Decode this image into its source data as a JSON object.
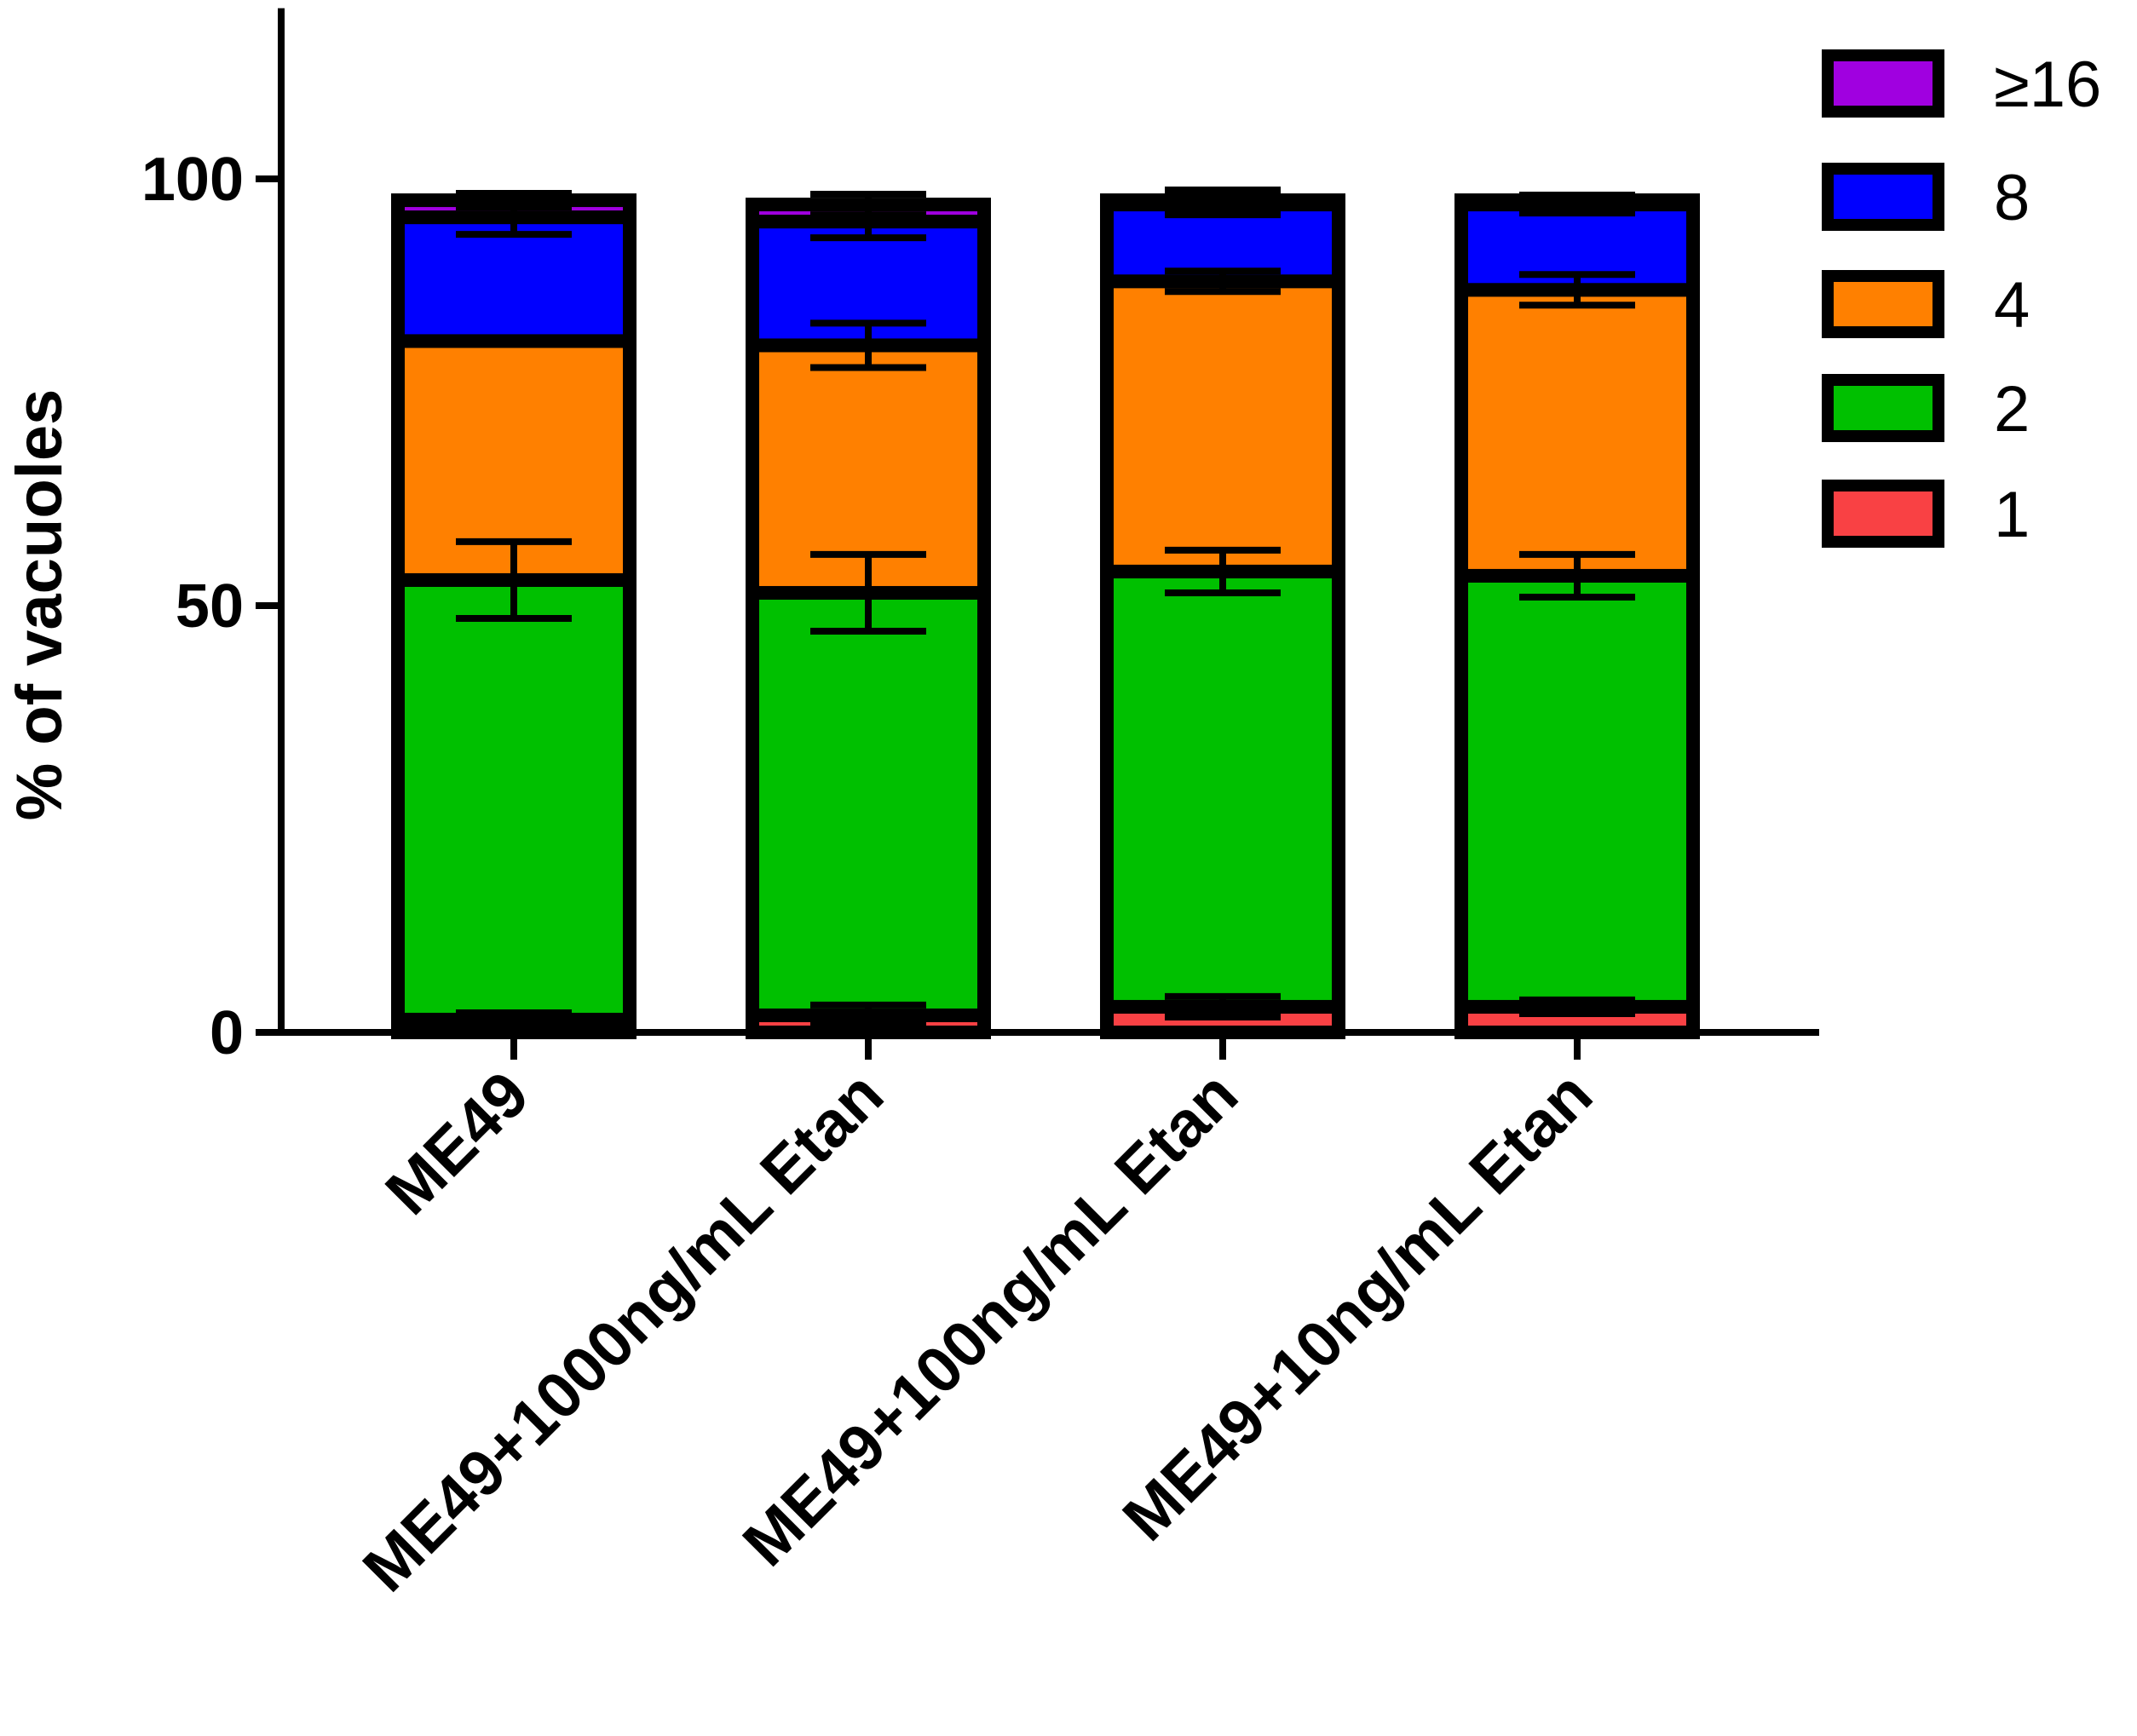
{
  "chart_data": {
    "type": "bar",
    "stacked": true,
    "title": "",
    "xlabel": "",
    "ylabel": "% of vacuoles",
    "ylim": [
      0,
      120
    ],
    "yticks": [
      0,
      50,
      100
    ],
    "categories": [
      "ME49",
      "ME49+1000ng/mL Etan",
      "ME49+100ng/mL Etan",
      "ME49+10ng/mL Etan"
    ],
    "series": [
      {
        "name": "1",
        "color": "#f94144",
        "values": [
          1.5,
          2.0,
          3.0,
          3.0
        ],
        "errors": [
          0.8,
          1.2,
          1.2,
          0.8
        ]
      },
      {
        "name": "2",
        "color": "#00c000",
        "values": [
          51.5,
          49.5,
          51.0,
          50.5
        ],
        "errors": [
          4.5,
          4.5,
          2.5,
          2.5
        ]
      },
      {
        "name": "4",
        "color": "#ff8000",
        "values": [
          28.0,
          29.0,
          34.0,
          33.5
        ],
        "errors": [
          0.3,
          2.6,
          1.2,
          1.8
        ]
      },
      {
        "name": "8",
        "color": "#0000ff",
        "values": [
          14.5,
          14.5,
          9.0,
          10.0
        ],
        "errors": [
          2.0,
          1.9,
          1.2,
          1.0
        ]
      },
      {
        "name": "≥16",
        "color": "#a000e0",
        "values": [
          2.0,
          2.0,
          0.5,
          0.5
        ],
        "errors": [
          0.8,
          1.2,
          1.2,
          0.6
        ]
      }
    ],
    "legend": {
      "position": "top-right",
      "order": [
        "≥16",
        "8",
        "4",
        "2",
        "1"
      ]
    },
    "grid": false
  }
}
